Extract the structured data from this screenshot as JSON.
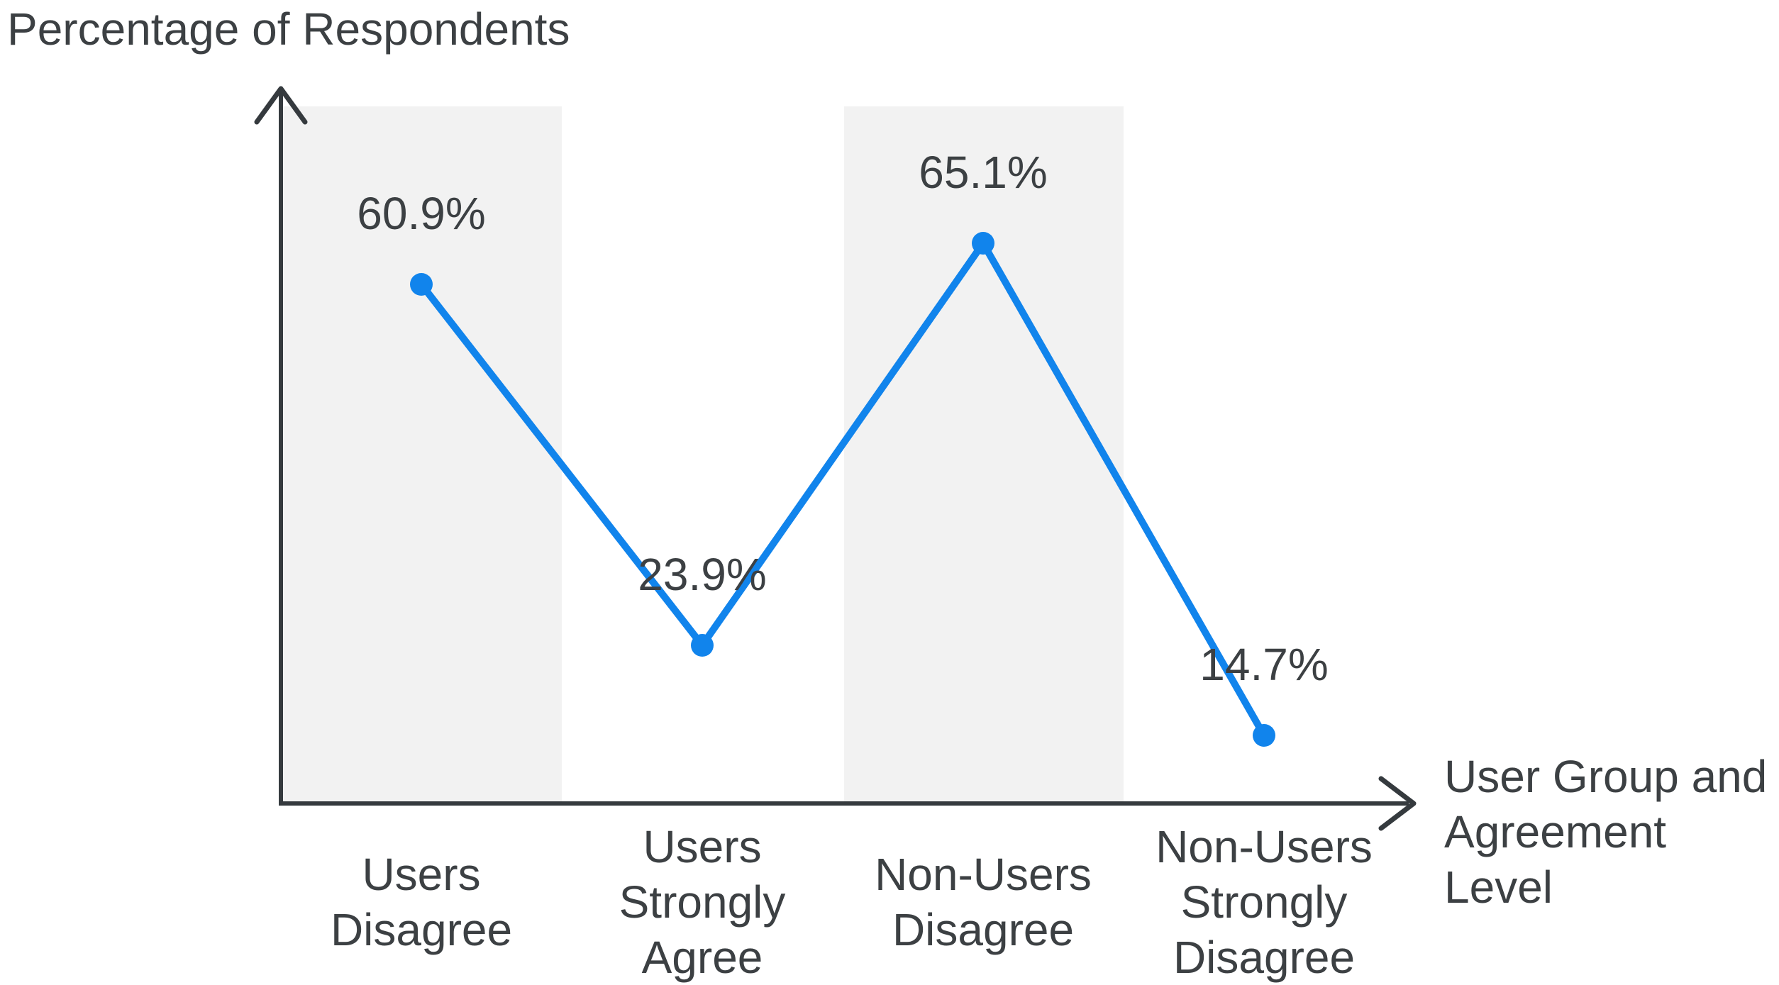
{
  "page": {
    "background": "#FFFFFF"
  },
  "chart_data": {
    "type": "line",
    "title": "",
    "ylabel": "Percentage of Respondents",
    "xlabel": "User Group and\nAgreement Level",
    "categories": [
      "Users\nDisagree",
      "Users\nStrongly\nAgree",
      "Non-Users\nDisagree",
      "Non-Users\nStrongly\nDisagree"
    ],
    "values": [
      60.9,
      23.9,
      65.1,
      14.7
    ],
    "data_labels": [
      "60.9%",
      "23.9%",
      "65.1%",
      "14.7%"
    ],
    "series": [
      {
        "name": "Percentage of Respondents",
        "values": [
          60.9,
          23.9,
          65.1,
          14.7
        ]
      }
    ],
    "banded_category_indexes": [
      0,
      2
    ],
    "grid": false,
    "legend": false,
    "axis_arrows": true,
    "ylim": [
      0,
      75
    ],
    "colors": {
      "line": "#1184EC",
      "marker": "#1184EC",
      "band": "#F2F2F2",
      "text": "#3C4043",
      "axis": "#353A3E"
    }
  }
}
